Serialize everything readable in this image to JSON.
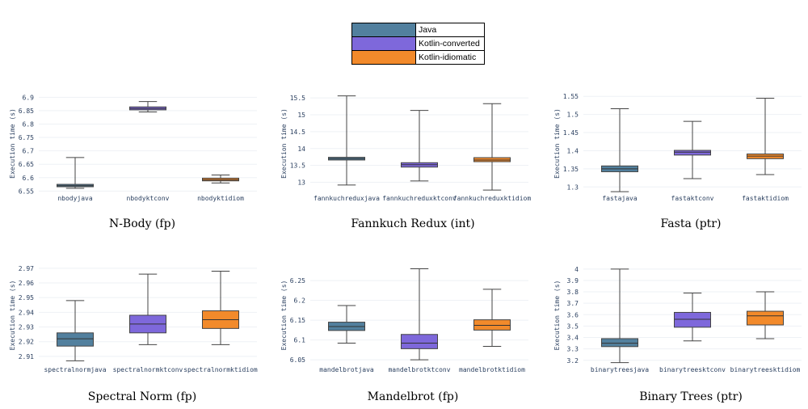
{
  "legend": [
    {
      "label": "Java",
      "color": "#52809E"
    },
    {
      "label": "Kotlin-converted",
      "color": "#7E68DB"
    },
    {
      "label": "Kotlin-idiomatic",
      "color": "#F28A2B"
    }
  ],
  "chart_data": [
    {
      "type": "box",
      "title": "N-Body (fp)",
      "ylabel": "Execution time (s)",
      "ylim": [
        6.545,
        6.91
      ],
      "yticks": [
        6.55,
        6.6,
        6.65,
        6.7,
        6.75,
        6.8,
        6.85,
        6.9
      ],
      "ytick_labels": [
        "6.55",
        "6.6",
        "6.65",
        "6.7",
        "6.75",
        "6.8",
        "6.85",
        "6.9"
      ],
      "series": [
        {
          "name": "nbodyjava",
          "min": 6.56,
          "q1": 6.566,
          "median": 6.57,
          "q3": 6.575,
          "max": 6.675
        },
        {
          "name": "nbodyktconv",
          "min": 6.845,
          "q1": 6.853,
          "median": 6.858,
          "q3": 6.864,
          "max": 6.884
        },
        {
          "name": "nbodyktidiom",
          "min": 6.58,
          "q1": 6.588,
          "median": 6.592,
          "q3": 6.598,
          "max": 6.61
        }
      ]
    },
    {
      "type": "box",
      "title": "Fannkuch Redux (int)",
      "ylabel": "Execution time (s)",
      "ylim": [
        12.7,
        15.6
      ],
      "yticks": [
        13,
        13.5,
        14,
        14.5,
        15,
        15.5
      ],
      "ytick_labels": [
        "13",
        "13.5",
        "14",
        "14.5",
        "15",
        "15.5"
      ],
      "series": [
        {
          "name": "fannkuchreduxjava",
          "min": 12.92,
          "q1": 13.66,
          "median": 13.7,
          "q3": 13.74,
          "max": 15.56
        },
        {
          "name": "fannkuchreduxktconv",
          "min": 13.04,
          "q1": 13.45,
          "median": 13.52,
          "q3": 13.58,
          "max": 15.13
        },
        {
          "name": "fannkuchreduxktidiom",
          "min": 12.77,
          "q1": 13.61,
          "median": 13.66,
          "q3": 13.73,
          "max": 15.33
        }
      ]
    },
    {
      "type": "box",
      "title": "Fasta (ptr)",
      "ylabel": "Execution time (s)",
      "ylim": [
        1.285,
        1.555
      ],
      "yticks": [
        1.3,
        1.35,
        1.4,
        1.45,
        1.5,
        1.55
      ],
      "ytick_labels": [
        "1.3",
        "1.35",
        "1.4",
        "1.45",
        "1.5",
        "1.55"
      ],
      "series": [
        {
          "name": "fastajava",
          "min": 1.287,
          "q1": 1.342,
          "median": 1.35,
          "q3": 1.358,
          "max": 1.516
        },
        {
          "name": "fastaktconv",
          "min": 1.323,
          "q1": 1.388,
          "median": 1.396,
          "q3": 1.401,
          "max": 1.481
        },
        {
          "name": "fastaktidiom",
          "min": 1.334,
          "q1": 1.378,
          "median": 1.385,
          "q3": 1.391,
          "max": 1.545
        }
      ]
    },
    {
      "type": "box",
      "title": "Spectral Norm (fp)",
      "ylabel": "Execution time (s)",
      "ylim": [
        2.905,
        2.971
      ],
      "yticks": [
        2.91,
        2.92,
        2.93,
        2.94,
        2.95,
        2.96,
        2.97
      ],
      "ytick_labels": [
        "2.91",
        "2.92",
        "2.93",
        "2.94",
        "2.95",
        "2.96",
        "2.97"
      ],
      "series": [
        {
          "name": "spectralnormjava",
          "min": 2.907,
          "q1": 2.917,
          "median": 2.922,
          "q3": 2.926,
          "max": 2.948
        },
        {
          "name": "spectralnormktconv",
          "min": 2.918,
          "q1": 2.926,
          "median": 2.932,
          "q3": 2.938,
          "max": 2.966
        },
        {
          "name": "spectralnormktidiom",
          "min": 2.918,
          "q1": 2.929,
          "median": 2.935,
          "q3": 2.941,
          "max": 2.968
        }
      ]
    },
    {
      "type": "box",
      "title": "Mandelbrot (fp)",
      "ylabel": "Execution time (s)",
      "ylim": [
        6.04,
        6.285
      ],
      "yticks": [
        6.05,
        6.1,
        6.15,
        6.2,
        6.25
      ],
      "ytick_labels": [
        "6.05",
        "6.1",
        "6.15",
        "6.2",
        "6.25"
      ],
      "series": [
        {
          "name": "mandelbrotjava",
          "min": 6.092,
          "q1": 6.124,
          "median": 6.134,
          "q3": 6.145,
          "max": 6.187
        },
        {
          "name": "mandelbrotktconv",
          "min": 6.05,
          "q1": 6.078,
          "median": 6.092,
          "q3": 6.114,
          "max": 6.28
        },
        {
          "name": "mandelbrotktidiom",
          "min": 6.084,
          "q1": 6.125,
          "median": 6.137,
          "q3": 6.151,
          "max": 6.228
        }
      ]
    },
    {
      "type": "box",
      "title": "Binary Trees (ptr)",
      "ylabel": "Execution time (s)",
      "ylim": [
        3.17,
        4.02
      ],
      "yticks": [
        3.2,
        3.3,
        3.4,
        3.5,
        3.6,
        3.7,
        3.8,
        3.9,
        4
      ],
      "ytick_labels": [
        "3.2",
        "3.3",
        "3.4",
        "3.5",
        "3.6",
        "3.7",
        "3.8",
        "3.9",
        "4"
      ],
      "series": [
        {
          "name": "binarytreesjava",
          "min": 3.18,
          "q1": 3.32,
          "median": 3.35,
          "q3": 3.39,
          "max": 4.0
        },
        {
          "name": "binarytreesktconv",
          "min": 3.37,
          "q1": 3.49,
          "median": 3.56,
          "q3": 3.62,
          "max": 3.79
        },
        {
          "name": "binarytreesktidiom",
          "min": 3.39,
          "q1": 3.51,
          "median": 3.59,
          "q3": 3.63,
          "max": 3.8
        }
      ]
    }
  ]
}
